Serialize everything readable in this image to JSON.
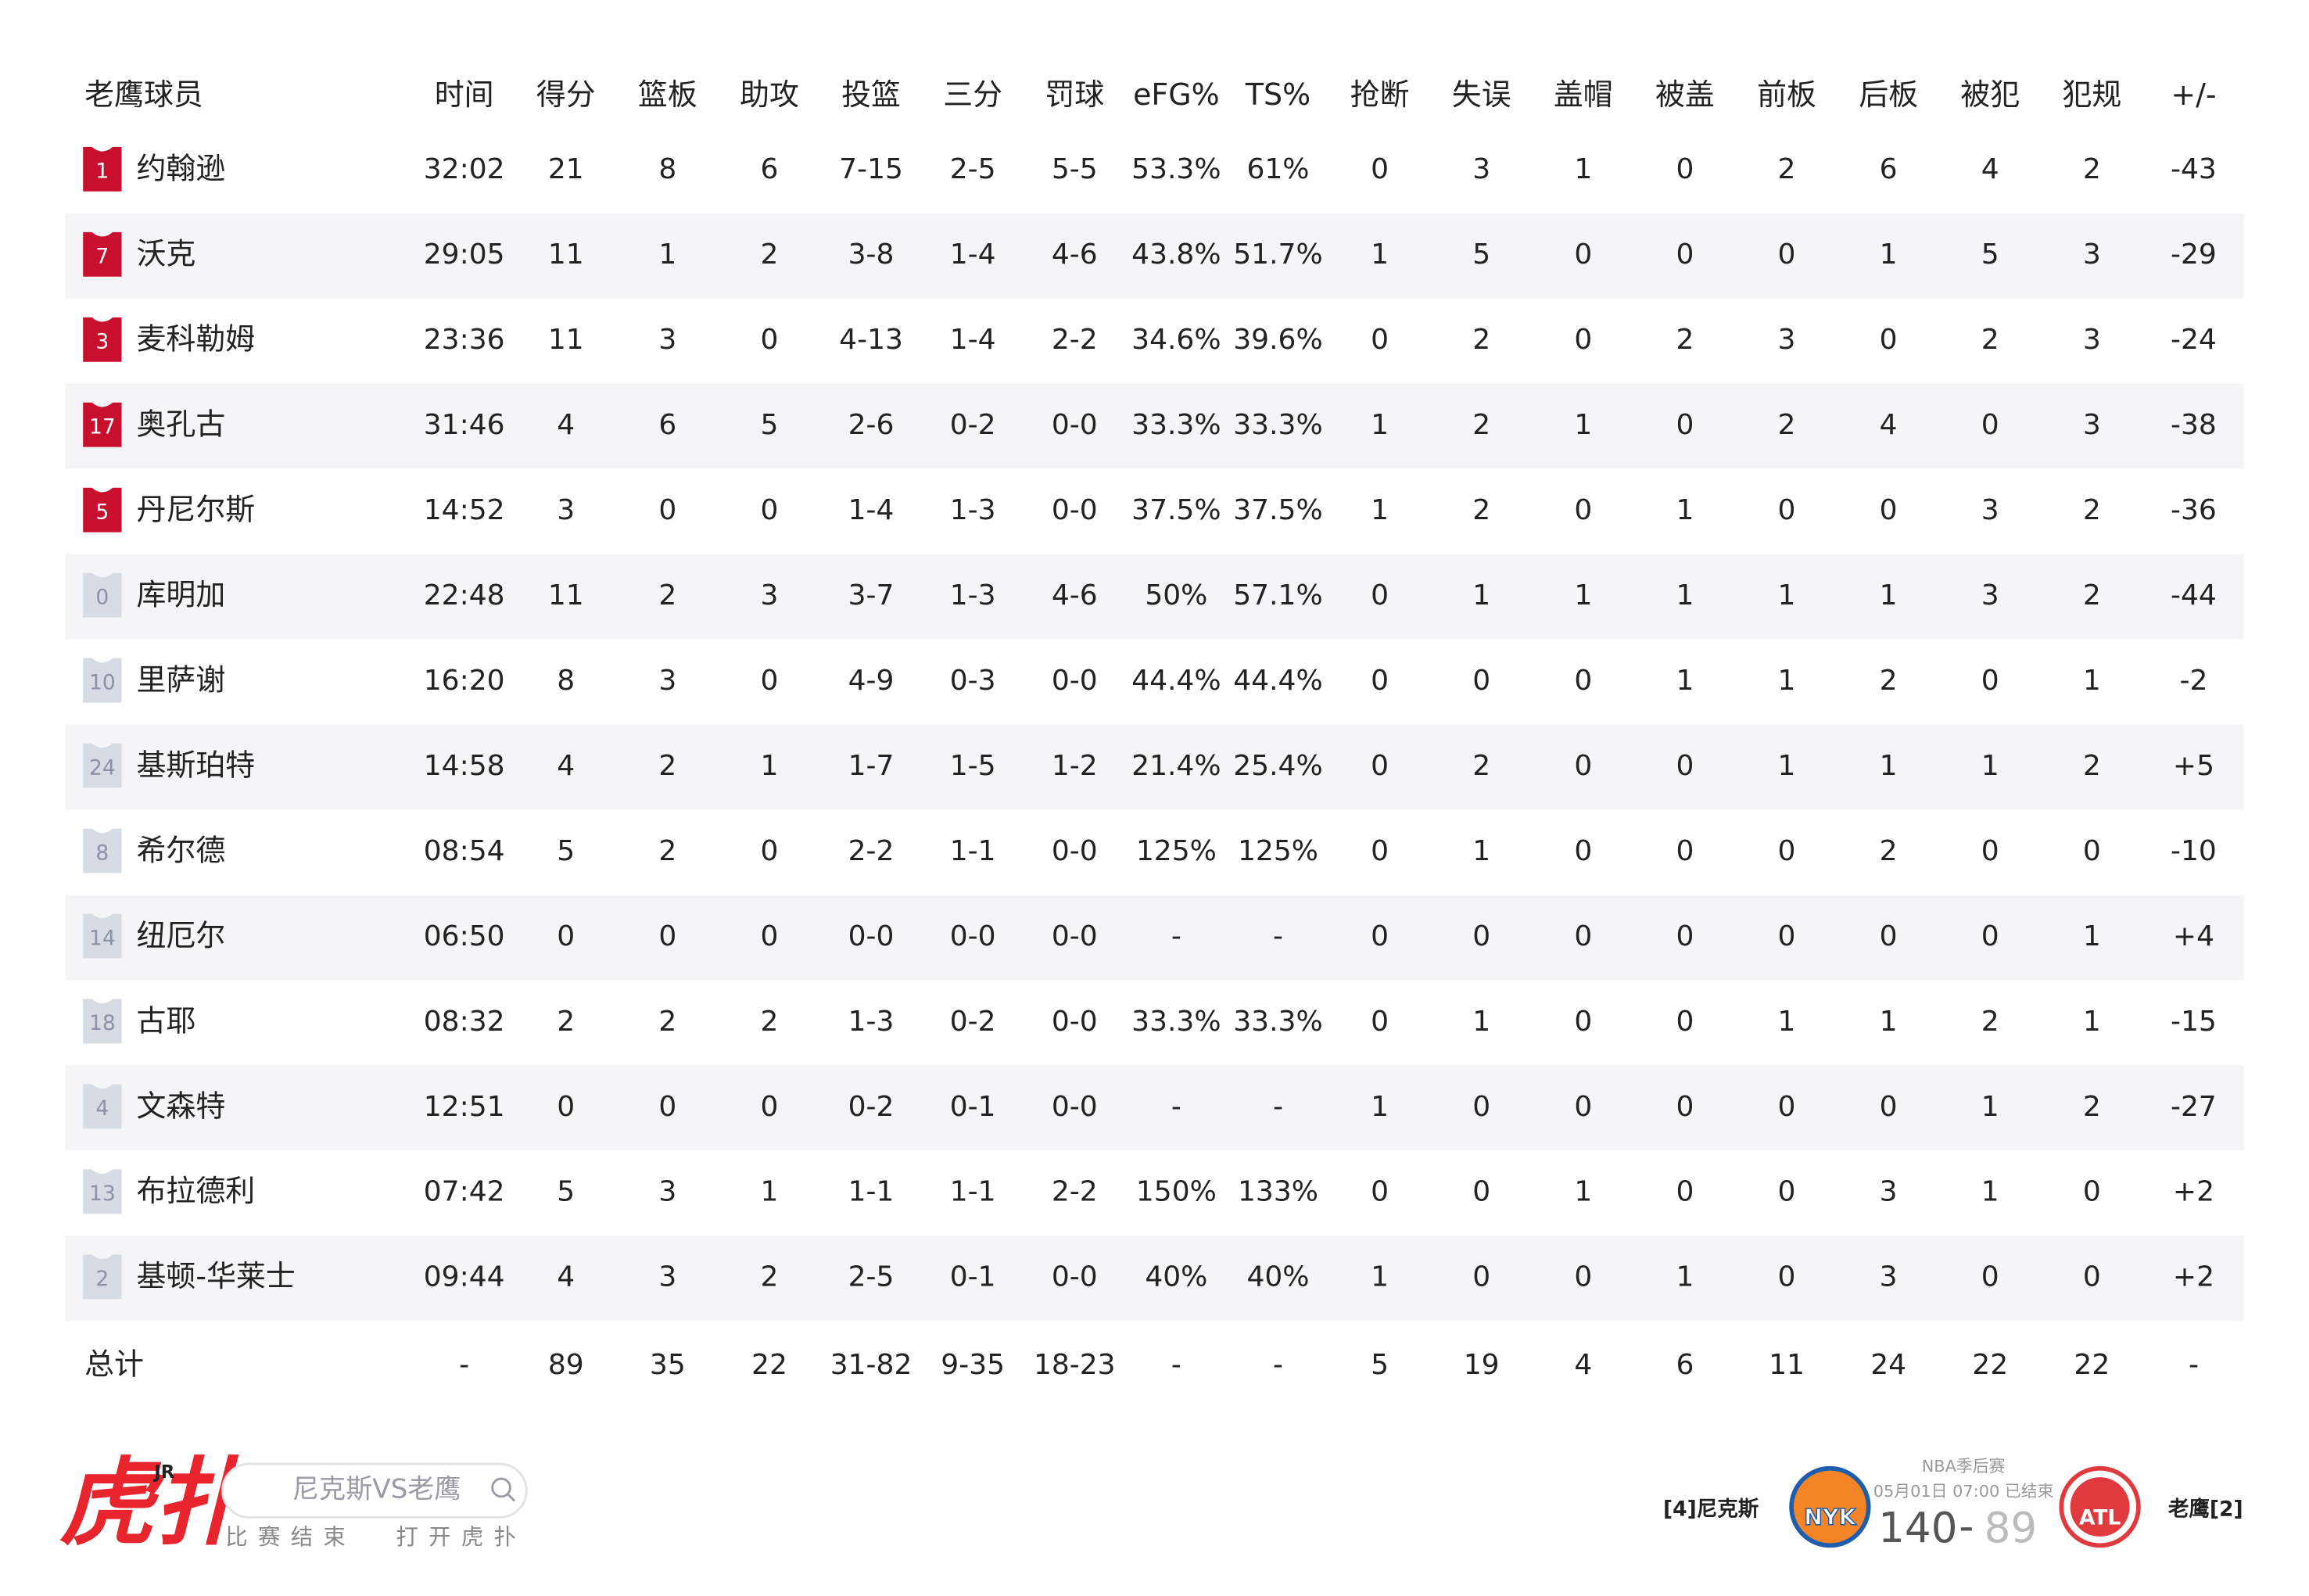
{
  "table": {
    "header": [
      "老鹰球员",
      "时间",
      "得分",
      "篮板",
      "助攻",
      "投篮",
      "三分",
      "罚球",
      "eFG%",
      "TS%",
      "抢断",
      "失误",
      "盖帽",
      "被盖",
      "前板",
      "后板",
      "被犯",
      "犯规",
      "+/-"
    ],
    "rows": [
      {
        "number": "1",
        "name": "约翰逊",
        "jersey_color": "#c8102e",
        "cells": [
          "32:02",
          "21",
          "8",
          "6",
          "7-15",
          "2-5",
          "5-5",
          "53.3%",
          "61%",
          "0",
          "3",
          "1",
          "0",
          "2",
          "6",
          "4",
          "2",
          "-43"
        ]
      },
      {
        "number": "7",
        "name": "沃克",
        "jersey_color": "#c8102e",
        "cells": [
          "29:05",
          "11",
          "1",
          "2",
          "3-8",
          "1-4",
          "4-6",
          "43.8%",
          "51.7%",
          "1",
          "5",
          "0",
          "0",
          "0",
          "1",
          "5",
          "3",
          "-29"
        ]
      },
      {
        "number": "3",
        "name": "麦科勒姆",
        "jersey_color": "#c8102e",
        "cells": [
          "23:36",
          "11",
          "3",
          "0",
          "4-13",
          "1-4",
          "2-2",
          "34.6%",
          "39.6%",
          "0",
          "2",
          "0",
          "2",
          "3",
          "0",
          "2",
          "3",
          "-24"
        ]
      },
      {
        "number": "17",
        "name": "奥孔古",
        "jersey_color": "#c8102e",
        "cells": [
          "31:46",
          "4",
          "6",
          "5",
          "2-6",
          "0-2",
          "0-0",
          "33.3%",
          "33.3%",
          "1",
          "2",
          "1",
          "0",
          "2",
          "4",
          "0",
          "3",
          "-38"
        ]
      },
      {
        "number": "5",
        "name": "丹尼尔斯",
        "jersey_color": "#c8102e",
        "cells": [
          "14:52",
          "3",
          "0",
          "0",
          "1-4",
          "1-3",
          "0-0",
          "37.5%",
          "37.5%",
          "1",
          "2",
          "0",
          "1",
          "0",
          "0",
          "3",
          "2",
          "-36"
        ]
      },
      {
        "number": "0",
        "name": "库明加",
        "jersey_color": "#d6dbe4",
        "cells": [
          "22:48",
          "11",
          "2",
          "3",
          "3-7",
          "1-3",
          "4-6",
          "50%",
          "57.1%",
          "0",
          "1",
          "1",
          "1",
          "1",
          "1",
          "3",
          "2",
          "-44"
        ]
      },
      {
        "number": "10",
        "name": "里萨谢",
        "jersey_color": "#d6dbe4",
        "cells": [
          "16:20",
          "8",
          "3",
          "0",
          "4-9",
          "0-3",
          "0-0",
          "44.4%",
          "44.4%",
          "0",
          "0",
          "0",
          "1",
          "1",
          "2",
          "0",
          "1",
          "-2"
        ]
      },
      {
        "number": "24",
        "name": "基斯珀特",
        "jersey_color": "#d6dbe4",
        "cells": [
          "14:58",
          "4",
          "2",
          "1",
          "1-7",
          "1-5",
          "1-2",
          "21.4%",
          "25.4%",
          "0",
          "2",
          "0",
          "0",
          "1",
          "1",
          "1",
          "2",
          "+5"
        ]
      },
      {
        "number": "8",
        "name": "希尔德",
        "jersey_color": "#d6dbe4",
        "cells": [
          "08:54",
          "5",
          "2",
          "0",
          "2-2",
          "1-1",
          "0-0",
          "125%",
          "125%",
          "0",
          "1",
          "0",
          "0",
          "0",
          "2",
          "0",
          "0",
          "-10"
        ]
      },
      {
        "number": "14",
        "name": "纽厄尔",
        "jersey_color": "#d6dbe4",
        "cells": [
          "06:50",
          "0",
          "0",
          "0",
          "0-0",
          "0-0",
          "0-0",
          "-",
          "-",
          "0",
          "0",
          "0",
          "0",
          "0",
          "0",
          "0",
          "1",
          "+4"
        ]
      },
      {
        "number": "18",
        "name": "古耶",
        "jersey_color": "#d6dbe4",
        "cells": [
          "08:32",
          "2",
          "2",
          "2",
          "1-3",
          "0-2",
          "0-0",
          "33.3%",
          "33.3%",
          "0",
          "1",
          "0",
          "0",
          "1",
          "1",
          "2",
          "1",
          "-15"
        ]
      },
      {
        "number": "4",
        "name": "文森特",
        "jersey_color": "#d6dbe4",
        "cells": [
          "12:51",
          "0",
          "0",
          "0",
          "0-2",
          "0-1",
          "0-0",
          "-",
          "-",
          "1",
          "0",
          "0",
          "0",
          "0",
          "0",
          "1",
          "2",
          "-27"
        ]
      },
      {
        "number": "13",
        "name": "布拉德利",
        "jersey_color": "#d6dbe4",
        "cells": [
          "07:42",
          "5",
          "3",
          "1",
          "1-1",
          "1-1",
          "2-2",
          "150%",
          "133%",
          "0",
          "0",
          "1",
          "0",
          "0",
          "3",
          "1",
          "0",
          "+2"
        ]
      },
      {
        "number": "2",
        "name": "基顿-华莱士",
        "jersey_color": "#d6dbe4",
        "cells": [
          "09:44",
          "4",
          "3",
          "2",
          "2-5",
          "0-1",
          "0-0",
          "40%",
          "40%",
          "1",
          "0",
          "0",
          "1",
          "0",
          "3",
          "0",
          "0",
          "+2"
        ]
      }
    ],
    "total": {
      "label": "总计",
      "cells": [
        "-",
        "89",
        "35",
        "22",
        "31-82",
        "9-35",
        "18-23",
        "-",
        "-",
        "5",
        "19",
        "4",
        "6",
        "11",
        "24",
        "22",
        "22",
        "-"
      ]
    }
  },
  "footer": {
    "brand": "虎扑",
    "brand_sup": "JR",
    "search": "尼克斯VS老鹰",
    "status": "比赛结束",
    "open": "打开虎扑",
    "home": "[4]尼克斯",
    "home_logo": "NYK",
    "league": "NBA季后赛",
    "time": "05月01日 07:00 已结束",
    "home_score": "140",
    "dash": "-",
    "away_score": "89",
    "away_logo": "ATL",
    "away": "老鹰[2]"
  }
}
